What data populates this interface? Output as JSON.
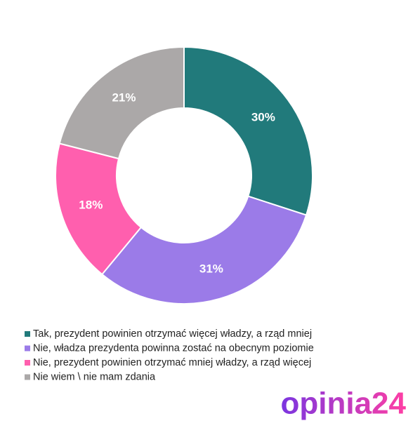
{
  "chart_data": {
    "type": "donut",
    "categories": [
      "Tak, prezydent powinien otrzymać więcej władzy, a rząd mniej",
      "Nie, władza prezydenta powinna zostać na obecnym poziomie",
      "Nie, prezydent powinien otrzymać mniej władzy, a rząd więcej",
      "Nie wiem \\ nie mam zdania"
    ],
    "values": [
      30,
      31,
      18,
      21
    ],
    "value_labels": [
      "30%",
      "31%",
      "18%",
      "21%"
    ],
    "colors": [
      "#217a7b",
      "#9b7be8",
      "#ff5fae",
      "#aba8a8"
    ],
    "legend": "bottom-left"
  },
  "logo": "opinia24"
}
